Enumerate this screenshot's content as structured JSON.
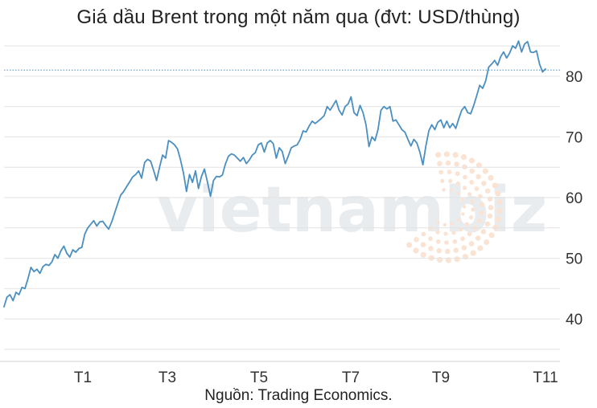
{
  "chart_data": {
    "type": "line",
    "title": "Giá dầu Brent trong một năm qua (đvt: USD/thùng)",
    "source": "Nguồn: Trading Economics.",
    "watermark": "vietnambiz",
    "ylim": [
      33,
      87
    ],
    "y_ticks": [
      "40",
      "50",
      "60",
      "70",
      "80"
    ],
    "x_ticks": [
      "T1",
      "T3",
      "T5",
      "T7",
      "T9",
      "T11"
    ],
    "grid": "horizontal",
    "line_color": "#4a8fc0",
    "last_value": 81,
    "series": [
      {
        "values": [
          42.0,
          43.6,
          44.0,
          43.0,
          44.4,
          44.0,
          45.2,
          45.0,
          46.6,
          48.5,
          47.8,
          48.2,
          47.5,
          48.6,
          49.0,
          48.8,
          49.4,
          50.6,
          50.0,
          51.2,
          52.0,
          50.8,
          50.2,
          51.4,
          51.0,
          51.6,
          51.8,
          54.0,
          55.0,
          55.6,
          56.2,
          55.3,
          56.0,
          56.1,
          55.4,
          54.8,
          56.0,
          57.5,
          59.0,
          60.4,
          61.0,
          61.8,
          62.6,
          63.4,
          63.8,
          64.4,
          63.2,
          65.8,
          66.3,
          66.0,
          64.5,
          62.8,
          65.0,
          67.0,
          66.5,
          69.4,
          69.1,
          68.7,
          68.0,
          66.2,
          64.0,
          61.0,
          63.8,
          62.5,
          64.4,
          61.5,
          63.5,
          64.7,
          62.6,
          60.2,
          62.8,
          63.5,
          63.4,
          63.7,
          65.5,
          66.8,
          67.2,
          67.0,
          66.5,
          66.0,
          66.6,
          65.6,
          66.2,
          67.0,
          67.4,
          68.7,
          69.0,
          67.5,
          69.0,
          69.4,
          68.9,
          66.5,
          68.2,
          67.6,
          65.6,
          66.8,
          68.2,
          68.5,
          68.7,
          69.6,
          71.0,
          70.8,
          71.8,
          72.6,
          72.2,
          72.6,
          73.0,
          73.5,
          75.0,
          74.4,
          75.2,
          76.0,
          74.4,
          73.6,
          75.0,
          75.4,
          76.6,
          74.0,
          73.5,
          75.2,
          74.0,
          72.0,
          68.4,
          70.0,
          69.4,
          71.2,
          74.4,
          75.0,
          74.6,
          75.0,
          72.6,
          72.8,
          72.0,
          71.2,
          70.8,
          69.6,
          68.5,
          69.6,
          69.0,
          67.5,
          65.4,
          68.5,
          71.0,
          72.0,
          71.2,
          72.4,
          72.8,
          71.5,
          72.6,
          71.5,
          72.2,
          71.4,
          73.0,
          74.4,
          75.0,
          74.0,
          73.8,
          75.2,
          76.8,
          78.5,
          78.0,
          79.2,
          81.5,
          82.0,
          82.6,
          81.8,
          83.2,
          84.0,
          83.0,
          83.8,
          85.0,
          84.6,
          85.8,
          84.0,
          85.3,
          85.7,
          84.0,
          83.9,
          84.2,
          82.0,
          80.7,
          81.2
        ]
      }
    ]
  }
}
